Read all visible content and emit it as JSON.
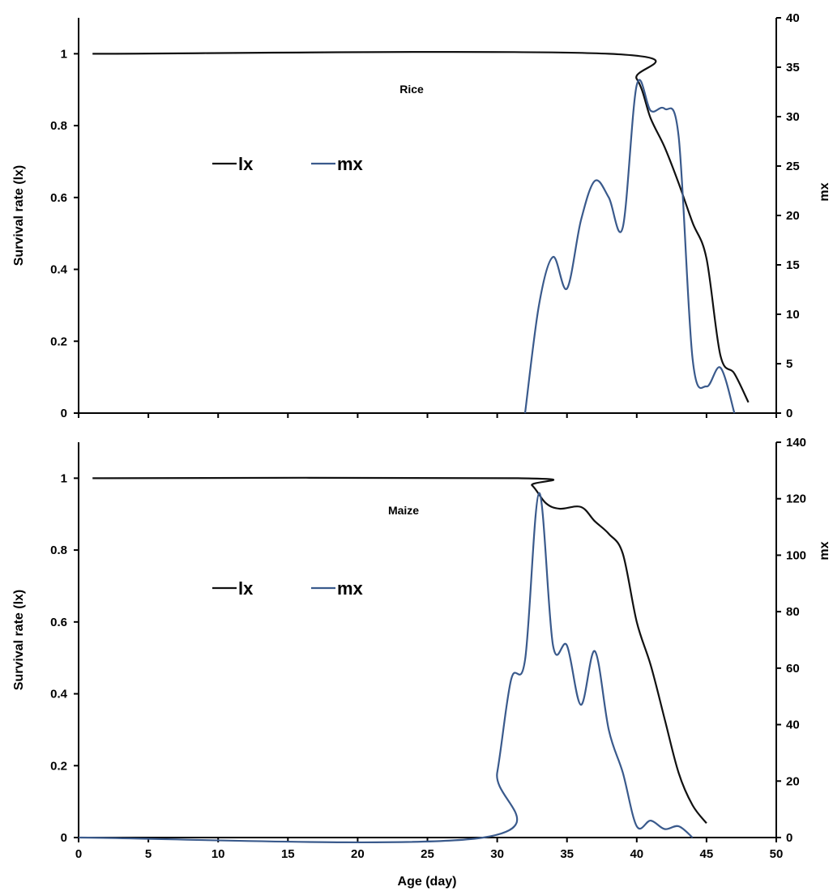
{
  "chart_data": [
    {
      "type": "line",
      "panel_label": "Rice",
      "ylabel_left": "Survival rate (lx)",
      "ylabel_right": "mx",
      "xlabel": "",
      "xlim": [
        0,
        50
      ],
      "ylim_left": [
        0,
        1.1
      ],
      "ylim_right": [
        0,
        40
      ],
      "left_ticks": [
        {
          "v": 0,
          "t": "0"
        },
        {
          "v": 0.2,
          "t": "0.2"
        },
        {
          "v": 0.4,
          "t": "0.4"
        },
        {
          "v": 0.6,
          "t": "0.6"
        },
        {
          "v": 0.8,
          "t": "0.8"
        },
        {
          "v": 1,
          "t": "1"
        }
      ],
      "right_ticks": [
        {
          "v": 0,
          "t": "0"
        },
        {
          "v": 5,
          "t": "5"
        },
        {
          "v": 10,
          "t": "10"
        },
        {
          "v": 15,
          "t": "15"
        },
        {
          "v": 20,
          "t": "20"
        },
        {
          "v": 25,
          "t": "25"
        },
        {
          "v": 30,
          "t": "30"
        },
        {
          "v": 35,
          "t": "35"
        },
        {
          "v": 40,
          "t": "40"
        }
      ],
      "x_ticks": [
        {
          "v": 0,
          "t": ""
        },
        {
          "v": 5,
          "t": ""
        },
        {
          "v": 10,
          "t": ""
        },
        {
          "v": 15,
          "t": ""
        },
        {
          "v": 20,
          "t": ""
        },
        {
          "v": 25,
          "t": ""
        },
        {
          "v": 30,
          "t": ""
        },
        {
          "v": 35,
          "t": ""
        },
        {
          "v": 40,
          "t": ""
        },
        {
          "v": 45,
          "t": ""
        },
        {
          "v": 50,
          "t": ""
        }
      ],
      "grid": false,
      "legend_position": "upper-left",
      "series": [
        {
          "name": "lx",
          "axis": "left",
          "color": "#111111",
          "x": [
            1,
            38,
            40,
            41,
            42,
            43,
            44,
            45,
            46,
            47,
            48
          ],
          "y": [
            1.0,
            1.0,
            0.93,
            0.82,
            0.74,
            0.64,
            0.53,
            0.43,
            0.16,
            0.11,
            0.03
          ]
        },
        {
          "name": "mx",
          "axis": "right",
          "color": "#3a5a8c",
          "x": [
            32,
            33,
            34,
            35,
            36,
            37,
            38,
            39,
            40,
            41,
            42,
            43,
            44,
            45,
            46,
            47
          ],
          "y": [
            0,
            11,
            15.8,
            12.6,
            19.5,
            23.5,
            21.8,
            18.8,
            33.2,
            30.6,
            30.8,
            28,
            5.5,
            2.7,
            4.6,
            0
          ]
        }
      ]
    },
    {
      "type": "line",
      "panel_label": "Maize",
      "ylabel_left": "Survival rate (lx)",
      "ylabel_right": "mx",
      "xlabel": "Age (day)",
      "xlim": [
        0,
        50
      ],
      "ylim_left": [
        0,
        1.1
      ],
      "ylim_right": [
        0,
        140
      ],
      "left_ticks": [
        {
          "v": 0,
          "t": "0"
        },
        {
          "v": 0.2,
          "t": "0.2"
        },
        {
          "v": 0.4,
          "t": "0.4"
        },
        {
          "v": 0.6,
          "t": "0.6"
        },
        {
          "v": 0.8,
          "t": "0.8"
        },
        {
          "v": 1,
          "t": "1"
        }
      ],
      "right_ticks": [
        {
          "v": 0,
          "t": "0"
        },
        {
          "v": 20,
          "t": "20"
        },
        {
          "v": 40,
          "t": "40"
        },
        {
          "v": 60,
          "t": "60"
        },
        {
          "v": 80,
          "t": "80"
        },
        {
          "v": 100,
          "t": "100"
        },
        {
          "v": 120,
          "t": "120"
        },
        {
          "v": 140,
          "t": "140"
        }
      ],
      "x_ticks": [
        {
          "v": 0,
          "t": "0"
        },
        {
          "v": 5,
          "t": "5"
        },
        {
          "v": 10,
          "t": "10"
        },
        {
          "v": 15,
          "t": "15"
        },
        {
          "v": 20,
          "t": "20"
        },
        {
          "v": 25,
          "t": "25"
        },
        {
          "v": 30,
          "t": "30"
        },
        {
          "v": 35,
          "t": "35"
        },
        {
          "v": 40,
          "t": "40"
        },
        {
          "v": 45,
          "t": "45"
        },
        {
          "v": 50,
          "t": "50"
        }
      ],
      "grid": false,
      "legend_position": "upper-left",
      "series": [
        {
          "name": "lx",
          "axis": "left",
          "color": "#111111",
          "x": [
            1,
            31.5,
            32.5,
            33.5,
            34.5,
            36,
            37,
            38,
            39,
            40,
            41,
            42,
            43,
            44,
            45
          ],
          "y": [
            1.0,
            1.0,
            0.98,
            0.93,
            0.915,
            0.92,
            0.88,
            0.845,
            0.79,
            0.6,
            0.48,
            0.33,
            0.18,
            0.09,
            0.04
          ]
        },
        {
          "name": "mx",
          "axis": "right",
          "color": "#3a5a8c",
          "x": [
            0,
            29,
            30,
            31,
            32,
            33,
            34,
            35,
            36,
            37,
            38,
            39,
            40,
            41,
            42,
            43,
            44
          ],
          "y": [
            0,
            0,
            23,
            56,
            63,
            122,
            68,
            68,
            47,
            66,
            38,
            23,
            4,
            6,
            3,
            4,
            0
          ]
        }
      ]
    }
  ]
}
